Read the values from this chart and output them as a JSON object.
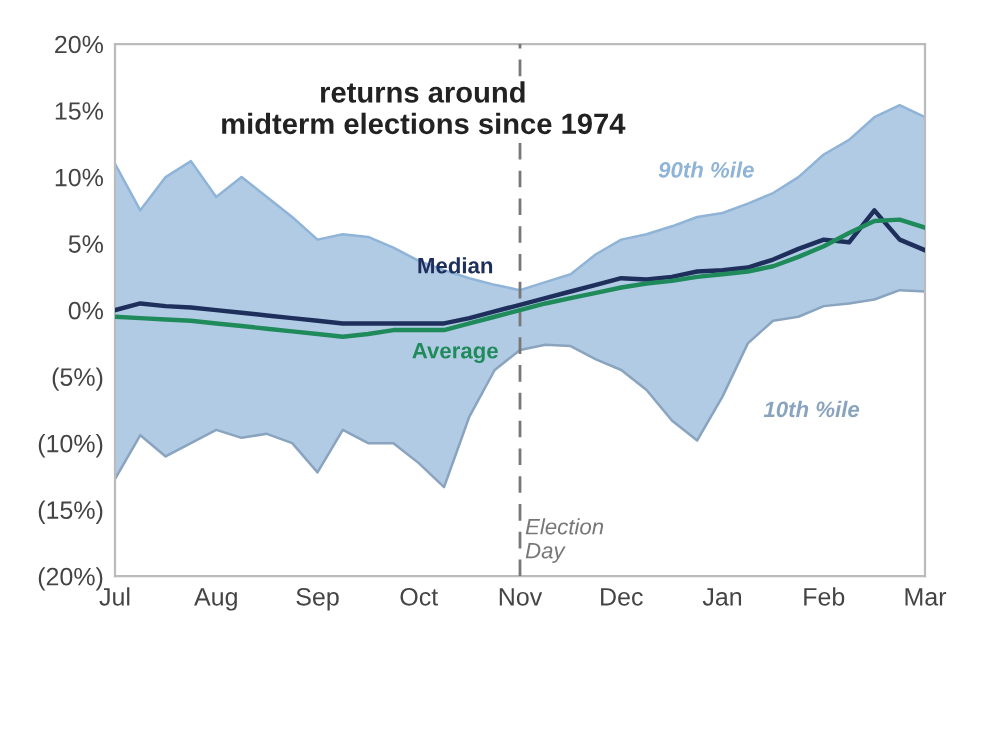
{
  "chart_data": {
    "type": "line",
    "title": "returns around\nmidterm elections since 1974",
    "categories": [
      "Jul",
      null,
      null,
      null,
      "Aug",
      null,
      null,
      null,
      "Sep",
      null,
      null,
      null,
      "Oct",
      null,
      null,
      null,
      "Nov",
      null,
      null,
      null,
      "Dec",
      null,
      null,
      null,
      "Jan",
      null,
      null,
      null,
      "Feb",
      null,
      null,
      null,
      "Mar"
    ],
    "ylim": [
      -20,
      20
    ],
    "yticks": [
      {
        "value": 20,
        "label": "20%"
      },
      {
        "value": 15,
        "label": "15%"
      },
      {
        "value": 10,
        "label": "10%"
      },
      {
        "value": 5,
        "label": "5%"
      },
      {
        "value": 0,
        "label": "0%"
      },
      {
        "value": -5,
        "label": "(5%)"
      },
      {
        "value": -10,
        "label": "(10%)"
      },
      {
        "value": -15,
        "label": "(15%)"
      },
      {
        "value": -20,
        "label": "(20%)"
      }
    ],
    "grid": false,
    "series": [
      {
        "name": "90th %ile",
        "color": "#8fb4d8",
        "values": [
          11,
          7.5,
          10,
          11.2,
          8.5,
          10,
          8.5,
          7,
          5.3,
          5.7,
          5.5,
          4.7,
          3.7,
          3,
          2.4,
          1.9,
          1.5,
          2.1,
          2.7,
          4.2,
          5.3,
          5.7,
          6.3,
          7,
          7.3,
          8,
          8.8,
          10,
          11.7,
          12.8,
          14.5,
          15.4,
          14.5
        ],
        "upper": [
          11,
          7.5,
          10,
          11.2,
          8.5,
          10,
          8.5,
          7,
          5.3,
          5.7,
          5.5,
          4.7,
          3.7,
          3,
          2.4,
          1.9,
          1.5,
          2.1,
          2.7,
          4.2,
          5.3,
          5.7,
          6.3,
          7,
          7.3,
          8,
          8.8,
          10,
          11.7,
          12.8,
          14.5,
          15.4,
          14.5
        ],
        "lower": [
          -12.7,
          -9.4,
          -11,
          -10,
          -9,
          -9.6,
          -9.3,
          -10,
          -12.2,
          -9,
          -10,
          -10,
          -11.5,
          -13.3,
          -8,
          -4.5,
          -3,
          -2.6,
          -2.7,
          -3.7,
          -4.5,
          -6,
          -8.3,
          -9.8,
          -6.5,
          -2.5,
          -0.8,
          -0.5,
          0.3,
          0.5,
          0.8,
          1.5,
          1.4
        ]
      },
      {
        "name": "10th %ile",
        "color": "#8aa4bf",
        "values": [
          -12.7,
          -9.4,
          -11,
          -10,
          -9,
          -9.6,
          -9.3,
          -10,
          -12.2,
          -9,
          -10,
          -10,
          -11.5,
          -13.3,
          -8,
          -4.5,
          -3,
          -2.6,
          -2.7,
          -3.7,
          -4.5,
          -6,
          -8.3,
          -9.8,
          -6.5,
          -2.5,
          -0.8,
          -0.5,
          0.3,
          0.5,
          0.8,
          1.5,
          1.4
        ]
      },
      {
        "name": "Median",
        "color": "#1f2f5c",
        "values": [
          0,
          0.5,
          0.3,
          0.2,
          0,
          -0.2,
          -0.4,
          -0.6,
          -0.8,
          -1,
          -1,
          -1,
          -1,
          -1,
          -0.6,
          -0.1,
          0.4,
          0.9,
          1.4,
          1.9,
          2.4,
          2.3,
          2.5,
          2.9,
          3,
          3.2,
          3.8,
          4.6,
          5.3,
          5.1,
          7.5,
          5.3,
          4.5
        ]
      },
      {
        "name": "Average",
        "color": "#1f8a5a",
        "values": [
          -0.5,
          -0.6,
          -0.7,
          -0.8,
          -1,
          -1.2,
          -1.4,
          -1.6,
          -1.8,
          -2,
          -1.8,
          -1.5,
          -1.5,
          -1.5,
          -1,
          -0.5,
          0,
          0.5,
          0.9,
          1.3,
          1.7,
          2,
          2.2,
          2.5,
          2.7,
          2.9,
          3.3,
          4,
          4.8,
          5.8,
          6.7,
          6.8,
          6.2
        ]
      }
    ],
    "ref_lines": [
      {
        "axis": "x",
        "value": "Nov",
        "label": "Election\nDay",
        "color": "#777777",
        "line_style": "dashed"
      }
    ]
  }
}
